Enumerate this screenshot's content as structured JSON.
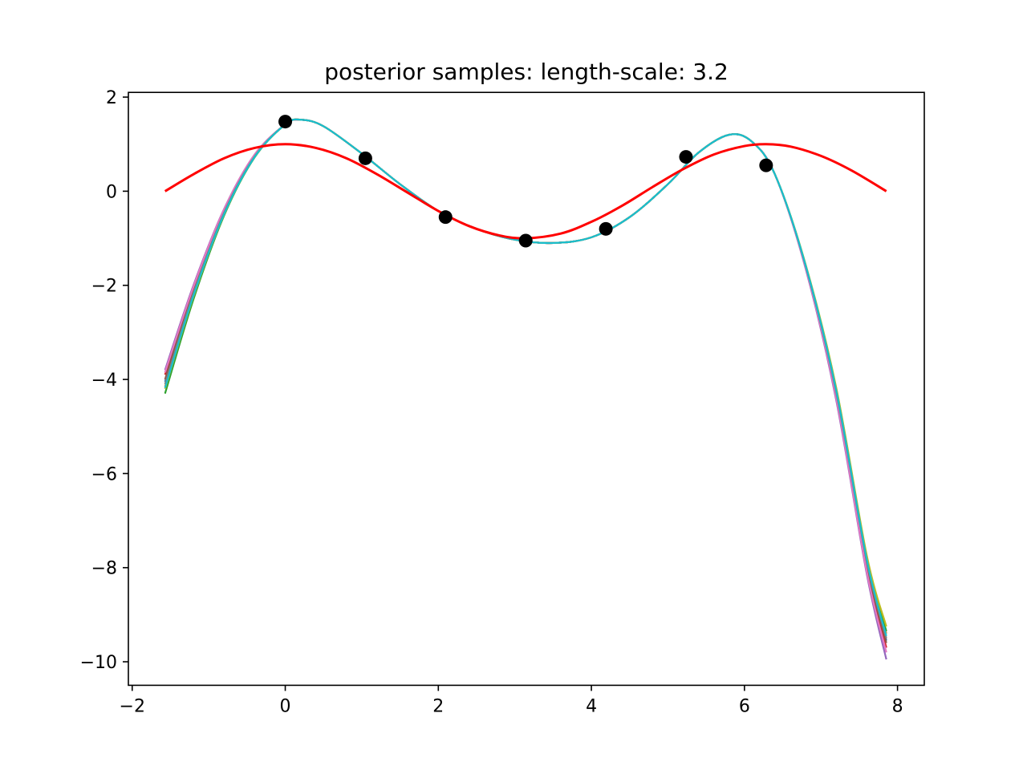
{
  "chart_data": {
    "type": "line",
    "title": "posterior samples: length-scale: 3.2",
    "xlabel": "",
    "ylabel": "",
    "xlim": [
      -2.05,
      8.35
    ],
    "ylim": [
      -10.5,
      2.1
    ],
    "x_ticks": [
      -2,
      0,
      2,
      4,
      6,
      8
    ],
    "x_tick_labels": [
      "−2",
      "0",
      "2",
      "4",
      "6",
      "8"
    ],
    "y_ticks": [
      2,
      0,
      -2,
      -4,
      -6,
      -8,
      -10
    ],
    "y_tick_labels": [
      "2",
      "0",
      "−2",
      "−4",
      "−6",
      "−8",
      "−10"
    ],
    "grid": false,
    "true_function": {
      "color": "#ff0000",
      "x": [
        -1.571,
        -1.2,
        -0.8,
        -0.4,
        0.0,
        0.4,
        0.8,
        1.2,
        1.6,
        2.0,
        2.4,
        2.8,
        3.1416,
        3.6,
        4.0,
        4.4,
        4.8,
        5.2,
        5.6,
        6.0,
        6.2832,
        6.6,
        7.0,
        7.4,
        7.854
      ],
      "y": [
        0.0,
        0.36,
        0.7,
        0.92,
        1.0,
        0.92,
        0.7,
        0.36,
        -0.03,
        -0.42,
        -0.74,
        -0.94,
        -1.0,
        -0.9,
        -0.65,
        -0.31,
        0.09,
        0.47,
        0.78,
        0.96,
        1.0,
        0.95,
        0.75,
        0.44,
        0.0
      ]
    },
    "observations": {
      "color": "#000000",
      "x": [
        0.0,
        1.047,
        2.094,
        3.142,
        4.189,
        5.236,
        6.283
      ],
      "y": [
        1.48,
        0.7,
        -0.55,
        -1.05,
        -0.8,
        0.73,
        0.55
      ]
    },
    "samples": {
      "x": [
        -1.571,
        -1.2,
        -0.8,
        -0.4,
        0.0,
        0.2,
        0.5,
        1.0,
        1.5,
        2.0,
        2.5,
        3.0,
        3.5,
        4.0,
        4.5,
        5.0,
        5.4,
        5.8,
        6.1,
        6.4,
        6.8,
        7.2,
        7.6,
        7.854
      ],
      "series": [
        {
          "color": "#1f77b4",
          "y": [
            -4.05,
            -2.15,
            -0.45,
            0.75,
            1.42,
            1.52,
            1.38,
            0.8,
            0.15,
            -0.42,
            -0.8,
            -1.03,
            -1.1,
            -0.98,
            -0.55,
            0.15,
            0.82,
            1.2,
            1.05,
            0.35,
            -1.6,
            -4.3,
            -7.9,
            -9.55
          ]
        },
        {
          "color": "#ff7f0e",
          "y": [
            -4.15,
            -2.2,
            -0.48,
            0.73,
            1.42,
            1.52,
            1.38,
            0.8,
            0.15,
            -0.42,
            -0.8,
            -1.03,
            -1.1,
            -0.98,
            -0.55,
            0.15,
            0.82,
            1.2,
            1.05,
            0.35,
            -1.58,
            -4.25,
            -7.85,
            -9.4
          ]
        },
        {
          "color": "#2ca02c",
          "y": [
            -4.3,
            -2.3,
            -0.52,
            0.72,
            1.42,
            1.52,
            1.38,
            0.8,
            0.15,
            -0.42,
            -0.8,
            -1.03,
            -1.1,
            -0.98,
            -0.55,
            0.15,
            0.82,
            1.2,
            1.05,
            0.35,
            -1.57,
            -4.2,
            -7.8,
            -9.35
          ]
        },
        {
          "color": "#d62728",
          "y": [
            -3.9,
            -2.05,
            -0.4,
            0.77,
            1.42,
            1.52,
            1.38,
            0.8,
            0.15,
            -0.42,
            -0.8,
            -1.03,
            -1.1,
            -0.98,
            -0.55,
            0.15,
            0.82,
            1.2,
            1.05,
            0.35,
            -1.62,
            -4.35,
            -8.0,
            -9.7
          ]
        },
        {
          "color": "#9467bd",
          "y": [
            -3.8,
            -2.0,
            -0.38,
            0.78,
            1.42,
            1.52,
            1.38,
            0.8,
            0.15,
            -0.42,
            -0.8,
            -1.03,
            -1.1,
            -0.98,
            -0.55,
            0.15,
            0.82,
            1.2,
            1.05,
            0.35,
            -1.65,
            -4.45,
            -8.15,
            -9.95
          ]
        },
        {
          "color": "#8c564b",
          "y": [
            -4.0,
            -2.1,
            -0.43,
            0.76,
            1.42,
            1.52,
            1.38,
            0.8,
            0.15,
            -0.42,
            -0.8,
            -1.03,
            -1.1,
            -0.98,
            -0.55,
            0.15,
            0.82,
            1.2,
            1.05,
            0.35,
            -1.6,
            -4.3,
            -7.95,
            -9.6
          ]
        },
        {
          "color": "#e377c2",
          "y": [
            -3.85,
            -2.03,
            -0.39,
            0.78,
            1.42,
            1.52,
            1.38,
            0.8,
            0.15,
            -0.42,
            -0.8,
            -1.03,
            -1.1,
            -0.98,
            -0.55,
            0.15,
            0.82,
            1.2,
            1.05,
            0.35,
            -1.63,
            -4.4,
            -8.1,
            -9.8
          ]
        },
        {
          "color": "#7f7f7f",
          "y": [
            -4.1,
            -2.17,
            -0.46,
            0.74,
            1.42,
            1.52,
            1.38,
            0.8,
            0.15,
            -0.42,
            -0.8,
            -1.03,
            -1.1,
            -0.98,
            -0.55,
            0.15,
            0.82,
            1.2,
            1.05,
            0.35,
            -1.59,
            -4.28,
            -7.88,
            -9.5
          ]
        },
        {
          "color": "#bcbd22",
          "y": [
            -4.2,
            -2.24,
            -0.5,
            0.73,
            1.42,
            1.52,
            1.38,
            0.8,
            0.15,
            -0.42,
            -0.8,
            -1.03,
            -1.1,
            -0.98,
            -0.55,
            0.15,
            0.82,
            1.2,
            1.05,
            0.35,
            -1.56,
            -4.18,
            -7.75,
            -9.25
          ]
        },
        {
          "color": "#17becf",
          "y": [
            -4.18,
            -2.22,
            -0.49,
            0.73,
            1.42,
            1.52,
            1.38,
            0.8,
            0.15,
            -0.42,
            -0.8,
            -1.03,
            -1.1,
            -0.98,
            -0.55,
            0.15,
            0.82,
            1.2,
            1.05,
            0.35,
            -1.58,
            -4.24,
            -7.84,
            -9.45
          ]
        }
      ]
    }
  }
}
